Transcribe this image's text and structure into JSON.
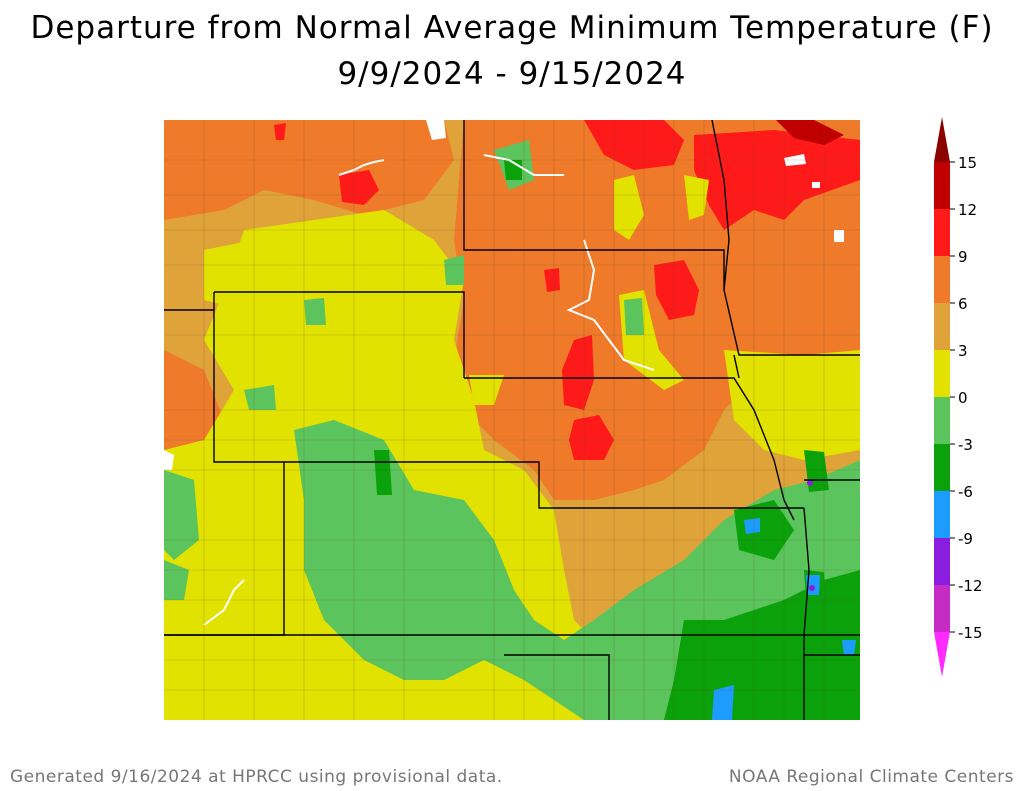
{
  "title": "Departure from Normal Average Minimum Temperature (F)",
  "subtitle": "9/9/2024 - 9/15/2024",
  "footer_left": "Generated 9/16/2024 at HPRCC using provisional data.",
  "footer_right": "NOAA Regional Climate Centers",
  "legend": {
    "ticks": [
      "15",
      "12",
      "9",
      "6",
      "3",
      "0",
      "-3",
      "-6",
      "-9",
      "-12",
      "-15"
    ],
    "bands": [
      {
        "range": "12 to 15",
        "color": "#c00000"
      },
      {
        "range": "9 to 12",
        "color": "#ff1a1a"
      },
      {
        "range": "6 to 9",
        "color": "#ee7a2a"
      },
      {
        "range": "3 to 6",
        "color": "#dfa33a"
      },
      {
        "range": "0 to 3",
        "color": "#e2e200"
      },
      {
        "range": "-3 to 0",
        "color": "#5cc45c"
      },
      {
        "range": "-6 to -3",
        "color": "#0aa10a"
      },
      {
        "range": "-9 to -6",
        "color": "#1d9cff"
      },
      {
        "range": "-12 to -9",
        "color": "#8a1de0"
      },
      {
        "range": "-15 to -12",
        "color": "#c62bc6"
      }
    ],
    "top_arrow_color": "#8b0000",
    "bottom_arrow_color": "#ff2bff"
  },
  "map": {
    "base_color": "#dfa33a",
    "region_colors": {
      "orange": "#ee7a2a",
      "red": "#ff1a1a",
      "darkred": "#c00000",
      "yellow": "#e2e200",
      "green": "#5cc45c",
      "darkgreen": "#0aa10a",
      "blue": "#1d9cff",
      "purple": "#8a1de0",
      "water": "#ffffff"
    }
  }
}
